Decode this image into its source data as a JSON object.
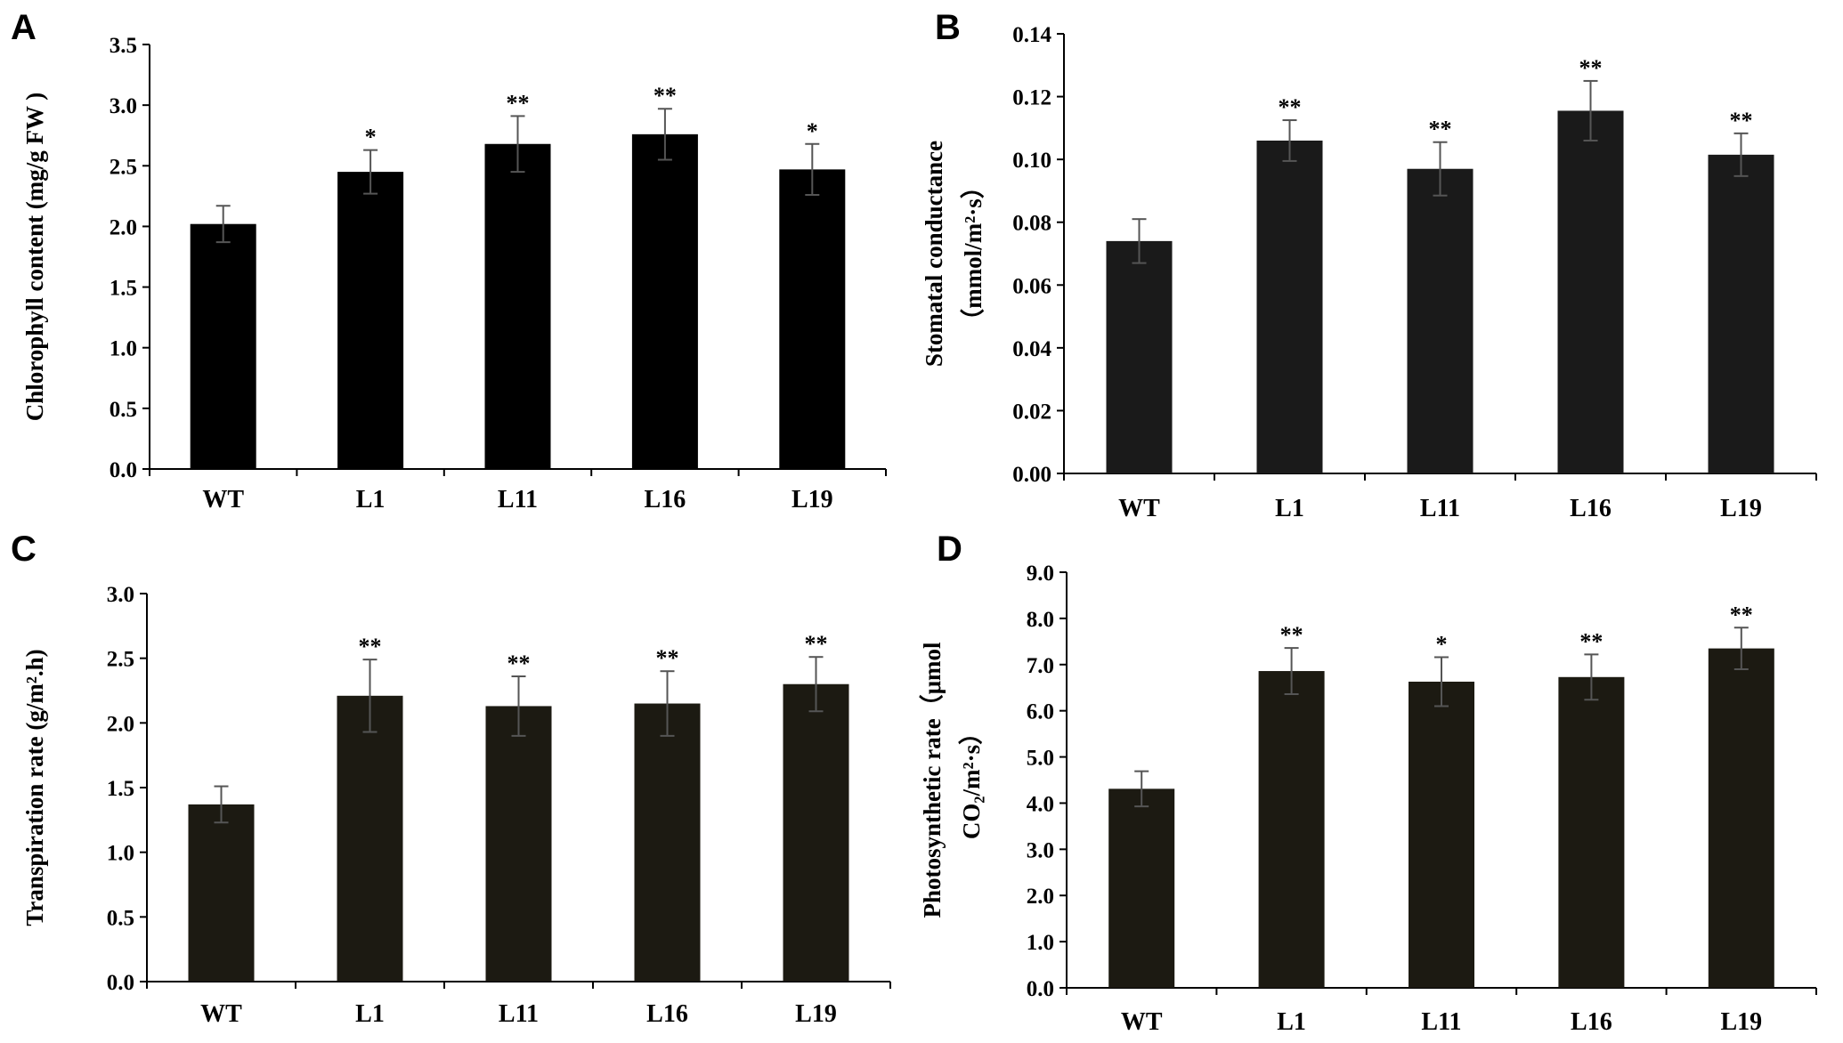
{
  "chart_data": [
    {
      "panel": "A",
      "type": "bar",
      "categories": [
        "WT",
        "L1",
        "L11",
        "L16",
        "L19"
      ],
      "values": [
        2.02,
        2.45,
        2.68,
        2.76,
        2.47
      ],
      "errors": [
        0.15,
        0.18,
        0.23,
        0.21,
        0.21
      ],
      "significance": [
        "",
        "*",
        "**",
        "**",
        "*"
      ],
      "ylabel": "Chlorophyll content (mg/g FW )",
      "ylabel_lines": [
        "Chlorophyll content (mg/g FW )"
      ],
      "ylim": [
        0,
        3.5
      ],
      "yticks": [
        "0.0",
        "0.5",
        "1.0",
        "1.5",
        "2.0",
        "2.5",
        "3.0",
        "3.5"
      ],
      "bar_color": "#000000"
    },
    {
      "panel": "B",
      "type": "bar",
      "categories": [
        "WT",
        "L1",
        "L11",
        "L16",
        "L19"
      ],
      "values": [
        0.074,
        0.106,
        0.097,
        0.1155,
        0.1015
      ],
      "errors": [
        0.007,
        0.0065,
        0.0085,
        0.0095,
        0.0068
      ],
      "significance": [
        "",
        "**",
        "**",
        "**",
        "**"
      ],
      "ylabel": "Stomatal conductance (mmol/m²·s)",
      "ylabel_lines": [
        "Stomatal conductance",
        "（mmol/m²·s）"
      ],
      "ylim": [
        0,
        0.14
      ],
      "yticks": [
        "0.00",
        "0.02",
        "0.04",
        "0.06",
        "0.08",
        "0.10",
        "0.12",
        "0.14"
      ],
      "bar_color": "#1a1a1a"
    },
    {
      "panel": "C",
      "type": "bar",
      "categories": [
        "WT",
        "L1",
        "L11",
        "L16",
        "L19"
      ],
      "values": [
        1.37,
        2.21,
        2.13,
        2.15,
        2.3
      ],
      "errors": [
        0.14,
        0.28,
        0.23,
        0.25,
        0.21
      ],
      "significance": [
        "",
        "**",
        "**",
        "**",
        "**"
      ],
      "ylabel": "Transpiration rate (g/m².h)",
      "ylabel_lines": [
        "Transpiration rate (g/m².h)"
      ],
      "ylim": [
        0,
        3.0
      ],
      "yticks": [
        "0.0",
        "0.5",
        "1.0",
        "1.5",
        "2.0",
        "2.5",
        "3.0"
      ],
      "bar_color": "#1c1a12"
    },
    {
      "panel": "D",
      "type": "bar",
      "categories": [
        "WT",
        "L1",
        "L11",
        "L16",
        "L19"
      ],
      "values": [
        4.31,
        6.86,
        6.63,
        6.73,
        7.35
      ],
      "errors": [
        0.38,
        0.5,
        0.53,
        0.49,
        0.45
      ],
      "significance": [
        "",
        "**",
        "*",
        "**",
        "**"
      ],
      "ylabel": "Photosynthetic rate（μmol CO₂/m²·s）",
      "ylabel_lines": [
        "Photosynthetic rate（μmol",
        "CO₂/m²·s）"
      ],
      "ylim": [
        0,
        9.0
      ],
      "yticks": [
        "0.0",
        "1.0",
        "2.0",
        "3.0",
        "4.0",
        "5.0",
        "6.0",
        "7.0",
        "8.0",
        "9.0"
      ],
      "bar_color": "#1c1a12"
    }
  ]
}
